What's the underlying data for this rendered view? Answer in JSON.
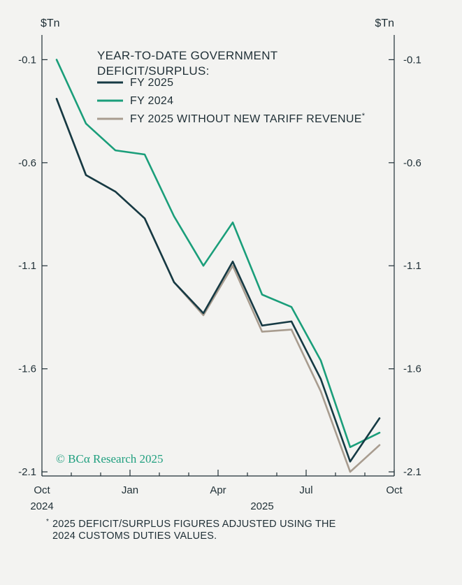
{
  "chart_data": {
    "type": "line",
    "y_unit_left": "$Tn",
    "y_unit_right": "$Tn",
    "legend_title_lines": [
      "YEAR-TO-DATE GOVERNMENT",
      "DEFICIT/SURPLUS:"
    ],
    "x_ticks": [
      {
        "label": "Oct",
        "month": 0
      },
      {
        "label": "Jan",
        "month": 3
      },
      {
        "label": "Apr",
        "month": 6
      },
      {
        "label": "Jul",
        "month": 9
      },
      {
        "label": "Oct",
        "month": 12
      }
    ],
    "x_year_labels": [
      {
        "label": "2024",
        "month": 0
      },
      {
        "label": "2025",
        "month": 7.5
      }
    ],
    "ylim": [
      -2.12,
      0.02
    ],
    "y_ticks": [
      "-0.1",
      "-0.6",
      "-1.1",
      "-1.6",
      "-2.1"
    ],
    "y_tick_values": [
      -0.1,
      -0.6,
      -1.1,
      -1.6,
      -2.1
    ],
    "series": [
      {
        "name": "FY 2024",
        "color": "#1a9e7a",
        "x": [
          0.5,
          1.5,
          2.5,
          3.5,
          4.5,
          5.5,
          6.5,
          7.5,
          8.5,
          9.5,
          10.5,
          11.5
        ],
        "values": [
          -0.1,
          -0.41,
          -0.54,
          -0.56,
          -0.86,
          -1.1,
          -0.89,
          -1.24,
          -1.3,
          -1.56,
          -1.98,
          -1.91
        ]
      },
      {
        "name": "FY 2025 WITHOUT NEW TARIFF REVENUE",
        "name_mark": "*",
        "color": "#a89c8f",
        "x": [
          0.5,
          1.5,
          2.5,
          3.5,
          4.5,
          5.5,
          6.5,
          7.5,
          8.5,
          9.5,
          10.5,
          11.5
        ],
        "values": [
          -0.29,
          -0.66,
          -0.74,
          -0.87,
          -1.18,
          -1.34,
          -1.1,
          -1.42,
          -1.41,
          -1.71,
          -2.1,
          -1.97
        ]
      },
      {
        "name": "FY 2025",
        "color": "#163a44",
        "x": [
          0.5,
          1.5,
          2.5,
          3.5,
          4.5,
          5.5,
          6.5,
          7.5,
          8.5,
          9.5,
          10.5,
          11.5
        ],
        "values": [
          -0.29,
          -0.66,
          -0.74,
          -0.87,
          -1.18,
          -1.33,
          -1.08,
          -1.39,
          -1.37,
          -1.65,
          -2.05,
          -1.84
        ]
      }
    ],
    "legend_order": [
      2,
      0,
      1
    ],
    "grid": false,
    "legend_position": "top-left"
  },
  "watermark": "© BCα Research 2025",
  "footnote": {
    "mark": "*",
    "lines": [
      "2025 DEFICIT/SURPLUS FIGURES ADJUSTED USING THE",
      "2024 CUSTOMS DUTIES VALUES."
    ]
  }
}
